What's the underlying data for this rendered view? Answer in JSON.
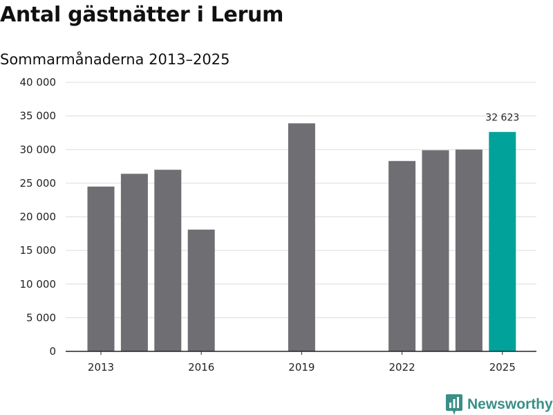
{
  "title": "Antal gästnätter i Lerum",
  "subtitle": "Sommarmånaderna 2013–2025",
  "brand": {
    "name": "Newsworthy",
    "icon": "newsworthy-logo-icon"
  },
  "colors": {
    "bar": "#6e6e73",
    "highlight": "#00a29a",
    "grid": "#dcdcdc",
    "axis": "#222222",
    "brand": "#3a8f87"
  },
  "chart_data": {
    "type": "bar",
    "title": "Antal gästnätter i Lerum",
    "subtitle": "Sommarmånaderna 2013–2025",
    "xlabel": "",
    "ylabel": "",
    "categories": [
      "2013",
      "2014",
      "2015",
      "2016",
      "2017",
      "2018",
      "2019",
      "2020",
      "2021",
      "2022",
      "2023",
      "2024",
      "2025"
    ],
    "values": [
      24500,
      26400,
      27000,
      18100,
      null,
      null,
      33900,
      null,
      null,
      28300,
      29900,
      30000,
      32623
    ],
    "highlight_category": "2025",
    "data_labels": [
      {
        "category": "2025",
        "text": "32 623"
      }
    ],
    "x_tick_labels": [
      "2013",
      "2016",
      "2019",
      "2022",
      "2025"
    ],
    "y_ticks": [
      0,
      5000,
      10000,
      15000,
      20000,
      25000,
      30000,
      35000,
      40000
    ],
    "y_tick_labels": [
      "0",
      "5 000",
      "10 000",
      "15 000",
      "20 000",
      "25 000",
      "30 000",
      "35 000",
      "40 000"
    ],
    "ylim": [
      0,
      40000
    ],
    "grid": true,
    "legend": "none"
  }
}
